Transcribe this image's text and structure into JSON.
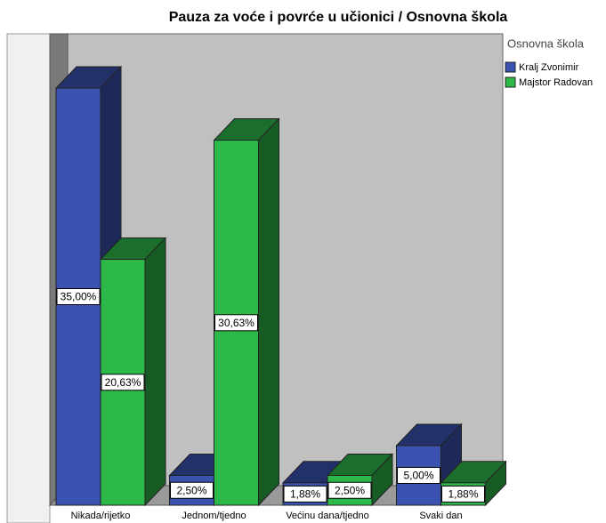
{
  "chart_data": {
    "type": "bar3d",
    "title": "Pauza za voće i povrće u učionici / Osnovna škola",
    "legend_title": "Osnovna škola",
    "categories": [
      "Nikada/rijetko",
      "Jednom/tjedno",
      "Većinu dana/tjedno",
      "Svaki dan"
    ],
    "series": [
      {
        "name": "Kralj Zvonimir",
        "color": "#3a52b0",
        "values": [
          35,
          2.5,
          1.88,
          5
        ],
        "value_labels": [
          "35,00%",
          "2,50%",
          "1,88%",
          "5,00%"
        ]
      },
      {
        "name": "Majstor Radovan",
        "color": "#2db84a",
        "values": [
          20.63,
          30.63,
          2.5,
          1.88
        ],
        "value_labels": [
          "20,63%",
          "30,63%",
          "2,50%",
          "1,88%"
        ]
      }
    ]
  }
}
